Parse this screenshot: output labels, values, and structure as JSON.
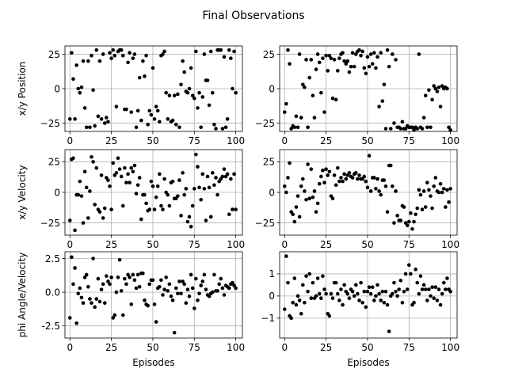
{
  "figure": {
    "title": "Final Observations"
  },
  "chart_data": [
    {
      "type": "scatter",
      "row": 0,
      "col": 0,
      "xlabel": "",
      "ylabel": "x/y Position",
      "xlim": [
        -3,
        104
      ],
      "ylim": [
        -31,
        31
      ],
      "xticks": [
        0,
        25,
        50,
        75,
        100
      ],
      "yticks": [
        -25,
        0,
        25
      ],
      "grid": true,
      "series": [
        {
          "color": "#000000",
          "y": [
            -22,
            26,
            7,
            -22,
            17,
            0,
            -3,
            1,
            20,
            -14,
            -28,
            20,
            -28,
            24,
            -1,
            -27,
            28,
            -20,
            20,
            -22,
            25,
            -25,
            -21,
            -24,
            26,
            22,
            28,
            24,
            -13,
            27,
            28,
            28,
            24,
            -15,
            -15,
            19,
            26,
            -17,
            22,
            25,
            -28,
            -16,
            8,
            -23,
            20,
            9,
            24,
            -26,
            -16,
            -19,
            15,
            -22,
            -13,
            -16,
            -24,
            24,
            25,
            27,
            -3,
            -22,
            -5,
            -24,
            -23,
            -5,
            -26,
            -4,
            -28,
            3,
            20,
            12,
            -2,
            -3,
            0,
            15,
            -5,
            -7,
            27,
            -14,
            -3,
            -28,
            -6,
            25,
            6,
            6,
            -12,
            27,
            -3,
            -26,
            -29,
            28,
            28,
            28,
            -29,
            23,
            -28,
            -22,
            28,
            22,
            0,
            27,
            -3
          ]
        }
      ]
    },
    {
      "type": "scatter",
      "row": 0,
      "col": 1,
      "xlabel": "",
      "ylabel": "",
      "xlim": [
        -3,
        104
      ],
      "ylim": [
        -31,
        31
      ],
      "xticks": [
        0,
        25,
        50,
        75,
        100
      ],
      "yticks": [
        -25,
        0,
        25
      ],
      "grid": true,
      "series": [
        {
          "color": "#000000",
          "y": [
            -17,
            -11,
            28,
            18,
            -29,
            -27,
            -28,
            -20,
            -28,
            25,
            -21,
            3,
            1,
            21,
            -28,
            8,
            21,
            -5,
            -21,
            14,
            25,
            19,
            -3,
            22,
            -17,
            24,
            13,
            24,
            22,
            -7,
            21,
            -8,
            13,
            22,
            25,
            26,
            20,
            18,
            20,
            12,
            16,
            26,
            16,
            25,
            27,
            28,
            24,
            27,
            15,
            11,
            23,
            16,
            25,
            18,
            26,
            15,
            23,
            -13,
            26,
            -9,
            3,
            -29,
            28,
            16,
            -29,
            25,
            -25,
            21,
            -28,
            -28,
            -29,
            -24,
            -29,
            -29,
            -27,
            -28,
            -28,
            -28,
            -30,
            -28,
            -29,
            25,
            -28,
            -29,
            -21,
            -5,
            -28,
            -1,
            -28,
            -8,
            2,
            0,
            -2,
            1,
            -13,
            2,
            0,
            1,
            0,
            -28,
            -30
          ]
        }
      ]
    },
    {
      "type": "scatter",
      "row": 1,
      "col": 0,
      "xlabel": "",
      "ylabel": "x/y Velocity",
      "xlim": [
        -3,
        104
      ],
      "ylim": [
        -35,
        35
      ],
      "xticks": [
        0,
        25,
        50,
        75,
        100
      ],
      "yticks": [
        -25,
        0,
        25
      ],
      "grid": true,
      "series": [
        {
          "color": "#000000",
          "y": [
            -23,
            27,
            28,
            -31,
            -2,
            -2,
            9,
            -3,
            -25,
            17,
            4,
            -21,
            1,
            29,
            25,
            -10,
            20,
            -14,
            -16,
            14,
            -21,
            -13,
            12,
            10,
            5,
            -14,
            24,
            14,
            16,
            28,
            19,
            13,
            -11,
            20,
            8,
            15,
            8,
            20,
            17,
            22,
            -1,
            6,
            12,
            -22,
            -2,
            -2,
            -9,
            -15,
            -14,
            9,
            5,
            -14,
            -4,
            5,
            15,
            -11,
            -14,
            11,
            0,
            -2,
            -11,
            8,
            9,
            -5,
            -5,
            -3,
            10,
            -19,
            16,
            -2,
            3,
            -24,
            -20,
            -28,
            -11,
            3,
            31,
            21,
            4,
            -6,
            15,
            3,
            -23,
            13,
            4,
            -20,
            16,
            6,
            12,
            -2,
            9,
            11,
            13,
            19,
            13,
            15,
            -18,
            11,
            -14,
            15,
            -14
          ]
        }
      ]
    },
    {
      "type": "scatter",
      "row": 1,
      "col": 1,
      "xlabel": "",
      "ylabel": "",
      "xlim": [
        -3,
        104
      ],
      "ylim": [
        -35,
        35
      ],
      "xticks": [
        0,
        25,
        50,
        75,
        100
      ],
      "yticks": [
        -25,
        0,
        25
      ],
      "grid": true,
      "series": [
        {
          "color": "#000000",
          "y": [
            5,
            0,
            12,
            24,
            -16,
            -18,
            -24,
            -12,
            -3,
            -20,
            5,
            11,
            1,
            -6,
            23,
            -5,
            19,
            -4,
            1,
            -16,
            -9,
            7,
            13,
            18,
            8,
            19,
            14,
            17,
            -3,
            -5,
            14,
            6,
            20,
            9,
            12,
            9,
            15,
            11,
            14,
            16,
            13,
            12,
            15,
            16,
            11,
            14,
            11,
            11,
            13,
            9,
            4,
            30,
            1,
            12,
            12,
            3,
            11,
            1,
            -2,
            10,
            10,
            5,
            -16,
            22,
            22,
            5,
            -25,
            1,
            -19,
            -23,
            -23,
            -11,
            -12,
            -25,
            -27,
            -24,
            -17,
            -30,
            -24,
            -18,
            -13,
            2,
            -2,
            -14,
            1,
            -12,
            8,
            2,
            -3,
            -13,
            5,
            12,
            1,
            0,
            7,
            0,
            3,
            -12,
            2,
            -8,
            3
          ]
        }
      ]
    },
    {
      "type": "scatter",
      "row": 2,
      "col": 0,
      "xlabel": "Episodes",
      "ylabel": "phi Angle/Velocity",
      "xlim": [
        -3,
        104
      ],
      "ylim": [
        -3.4,
        3.0
      ],
      "xticks": [
        0,
        25,
        50,
        75,
        100
      ],
      "yticks": [
        -2.5,
        0.0,
        2.5
      ],
      "ytick_labels": [
        "-2.5",
        "0.0",
        "2.5"
      ],
      "grid": true,
      "series": [
        {
          "color": "#000000",
          "y": [
            -1.9,
            2.6,
            0.6,
            1.8,
            -2.3,
            -0.1,
            0.3,
            -0.4,
            -0.8,
            1.1,
            1.3,
            0.4,
            -0.5,
            -0.8,
            2.5,
            -1.1,
            -0.5,
            1.0,
            -0.7,
            0.2,
            0.6,
            -0.8,
            1.2,
            0.8,
            0.6,
            1.1,
            -1.9,
            -1.7,
            0.0,
            1.1,
            2.4,
            0.1,
            -1.7,
            1.0,
            0.6,
            1.3,
            1.1,
            -0.9,
            1.3,
            0.9,
            0.3,
            1.3,
            0.4,
            1.4,
            1.4,
            -0.6,
            -0.9,
            -1.0,
            0.6,
            0.9,
            0.9,
            -0.9,
            -2.2,
            0.3,
            0.4,
            0.9,
            -0.2,
            0.2,
            1.1,
            0.1,
            0.6,
            -0.3,
            -0.6,
            -3.0,
            0.3,
            -0.1,
            0.8,
            -0.1,
            0.8,
            0.6,
            -0.8,
            0.2,
            -0.3,
            1.3,
            0.3,
            -1.2,
            1.0,
            -0.6,
            -0.1,
            0.5,
            0.8,
            1.3,
            0.2,
            -0.2,
            -0.3,
            -0.1,
            0.0,
            1.3,
            0.1,
            0.1,
            0.6,
            1.0,
            0.3,
            -0.2,
            0.5,
            0.4,
            0.3,
            0.6,
            0.7,
            0.5,
            0.3
          ]
        }
      ]
    },
    {
      "type": "scatter",
      "row": 2,
      "col": 1,
      "xlabel": "Episodes",
      "ylabel": "",
      "xlim": [
        -3,
        104
      ],
      "ylim": [
        -1.9,
        2.0
      ],
      "xticks": [
        0,
        25,
        50,
        75,
        100
      ],
      "yticks": [
        -1,
        0,
        1
      ],
      "ytick_labels": [
        "−1",
        "0",
        "1"
      ],
      "grid": true,
      "series": [
        {
          "color": "#000000",
          "y": [
            -0.6,
            1.8,
            0.6,
            -0.9,
            -1.0,
            -0.3,
            0.8,
            -0.4,
            0.0,
            -0.2,
            -0.8,
            0.5,
            -0.3,
            0.9,
            0.2,
            1.0,
            -0.1,
            0.6,
            -0.1,
            0.0,
            0.8,
            0.1,
            -0.1,
            0.9,
            0.3,
            0.1,
            -0.8,
            -0.9,
            0.1,
            -0.1,
            0.6,
            0.6,
            0.1,
            -0.2,
            0.3,
            -0.4,
            0.5,
            0.2,
            0.1,
            -0.1,
            0.3,
            0.2,
            0.0,
            0.5,
            0.1,
            -0.2,
            0.6,
            -0.3,
            0.2,
            -0.5,
            0.2,
            0.4,
            0.1,
            0.4,
            -0.2,
            0.0,
            0.5,
            0.1,
            -0.2,
            0.2,
            -0.3,
            0.2,
            -0.4,
            -1.6,
            0.0,
            0.1,
            0.6,
            0.2,
            0.0,
            0.3,
            0.7,
            -0.3,
            0.2,
            1.0,
            0.3,
            1.4,
            1.0,
            -0.4,
            -0.3,
            1.2,
            0.6,
            0.1,
            0.9,
            0.3,
            0.5,
            0.3,
            -0.2,
            0.3,
            0.0,
            0.4,
            -0.1,
            0.4,
            -0.2,
            0.3,
            -0.4,
            0.1,
            0.6,
            0.3,
            0.8,
            0.3,
            0.2
          ]
        }
      ]
    }
  ]
}
